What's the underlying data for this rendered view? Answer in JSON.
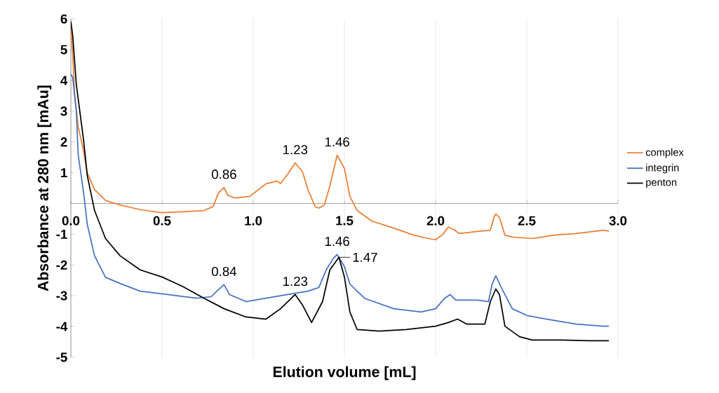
{
  "chart_data": {
    "type": "line",
    "xlabel": "Elution volume [mL]",
    "ylabel": "Absorbance at 280 nm [mAu]",
    "xlim": [
      0,
      3
    ],
    "ylim": [
      -5,
      6
    ],
    "xticks": [
      {
        "value": 0,
        "label": "0.0"
      },
      {
        "value": 0.5,
        "label": "0.5"
      },
      {
        "value": 1,
        "label": "1.0"
      },
      {
        "value": 1.5,
        "label": "1.5"
      },
      {
        "value": 2,
        "label": "2.0"
      },
      {
        "value": 2.5,
        "label": "2.5"
      },
      {
        "value": 3,
        "label": "3.0"
      }
    ],
    "yticks": [
      6,
      5,
      4,
      3,
      2,
      1,
      -1,
      -2,
      -3,
      -4,
      -5
    ],
    "grid": "x",
    "legend": "right",
    "series": [
      {
        "name": "complex",
        "color": "#ed7d31",
        "x": [
          0.0,
          0.01,
          0.02,
          0.04,
          0.07,
          0.09,
          0.13,
          0.19,
          0.27,
          0.38,
          0.5,
          0.61,
          0.73,
          0.78,
          0.81,
          0.84,
          0.86,
          0.9,
          0.98,
          1.02,
          1.07,
          1.13,
          1.15,
          1.19,
          1.23,
          1.27,
          1.3,
          1.34,
          1.36,
          1.39,
          1.42,
          1.46,
          1.5,
          1.53,
          1.57,
          1.65,
          1.77,
          1.88,
          1.96,
          2.0,
          2.04,
          2.07,
          2.1,
          2.13,
          2.23,
          2.3,
          2.32,
          2.33,
          2.35,
          2.38,
          2.42,
          2.53,
          2.65,
          2.77,
          2.92,
          2.95
        ],
        "values": [
          5.7,
          4.9,
          3.6,
          2.5,
          1.7,
          1.0,
          0.45,
          0.1,
          -0.05,
          -0.2,
          -0.3,
          -0.27,
          -0.23,
          -0.1,
          0.35,
          0.52,
          0.27,
          0.18,
          0.23,
          0.41,
          0.64,
          0.73,
          0.65,
          0.96,
          1.32,
          1.03,
          0.45,
          -0.11,
          -0.15,
          -0.05,
          0.57,
          1.57,
          1.14,
          0.23,
          -0.23,
          -0.57,
          -0.8,
          -1.03,
          -1.14,
          -1.18,
          -1.0,
          -0.77,
          -0.85,
          -0.98,
          -0.91,
          -0.87,
          -0.45,
          -0.34,
          -0.45,
          -1.03,
          -1.09,
          -1.14,
          -1.03,
          -0.98,
          -0.87,
          -0.9
        ]
      },
      {
        "name": "integrin",
        "color": "#4472c4",
        "x": [
          0.0,
          0.01,
          0.03,
          0.04,
          0.07,
          0.09,
          0.13,
          0.19,
          0.27,
          0.38,
          0.53,
          0.69,
          0.77,
          0.8,
          0.84,
          0.87,
          0.96,
          1.07,
          1.19,
          1.3,
          1.36,
          1.4,
          1.44,
          1.46,
          1.5,
          1.53,
          1.61,
          1.77,
          1.92,
          2.0,
          2.05,
          2.08,
          2.11,
          2.23,
          2.29,
          2.31,
          2.33,
          2.36,
          2.42,
          2.5,
          2.61,
          2.77,
          2.92,
          2.95
        ],
        "values": [
          4.2,
          4.1,
          3.0,
          1.6,
          0.34,
          -0.68,
          -1.7,
          -2.4,
          -2.6,
          -2.85,
          -2.96,
          -3.08,
          -3.03,
          -2.85,
          -2.64,
          -2.96,
          -3.19,
          -3.08,
          -2.96,
          -2.85,
          -2.73,
          -2.16,
          -1.78,
          -1.66,
          -2.05,
          -2.62,
          -3.08,
          -3.42,
          -3.53,
          -3.42,
          -3.08,
          -2.96,
          -3.14,
          -3.14,
          -3.19,
          -2.62,
          -2.35,
          -2.73,
          -3.42,
          -3.64,
          -3.76,
          -3.92,
          -3.99,
          -3.99
        ]
      },
      {
        "name": "penton",
        "color": "#000000",
        "x": [
          0.0,
          0.01,
          0.03,
          0.07,
          0.09,
          0.13,
          0.19,
          0.27,
          0.38,
          0.5,
          0.61,
          0.73,
          0.84,
          0.96,
          1.07,
          1.15,
          1.23,
          1.27,
          1.32,
          1.38,
          1.42,
          1.47,
          1.5,
          1.53,
          1.57,
          1.69,
          1.84,
          2.0,
          2.07,
          2.12,
          2.17,
          2.27,
          2.3,
          2.33,
          2.35,
          2.38,
          2.46,
          2.53,
          2.69,
          2.84,
          2.95
        ],
        "values": [
          5.92,
          5.47,
          3.87,
          2.05,
          0.91,
          -0.23,
          -1.14,
          -1.7,
          -2.16,
          -2.39,
          -2.69,
          -3.08,
          -3.42,
          -3.69,
          -3.76,
          -3.42,
          -2.96,
          -3.3,
          -3.87,
          -3.19,
          -2.16,
          -1.75,
          -2.39,
          -3.53,
          -4.1,
          -4.15,
          -4.1,
          -3.99,
          -3.87,
          -3.76,
          -3.92,
          -3.92,
          -3.19,
          -2.78,
          -2.96,
          -3.99,
          -4.33,
          -4.44,
          -4.44,
          -4.46,
          -4.46
        ]
      }
    ],
    "annotations": [
      {
        "text": "0.86",
        "x": 0.84,
        "y": 0.52
      },
      {
        "text": "1.23",
        "x": 1.23,
        "y": 1.32
      },
      {
        "text": "1.46",
        "x": 1.46,
        "y": 1.57
      },
      {
        "text": "0.84",
        "x": 0.84,
        "y": -2.64
      },
      {
        "text": "1.23",
        "x": 1.23,
        "y": -2.96
      },
      {
        "text": "1.46",
        "x": 1.46,
        "y": -1.66
      },
      {
        "text": "1.47",
        "x": 1.47,
        "y": -1.75
      }
    ]
  }
}
